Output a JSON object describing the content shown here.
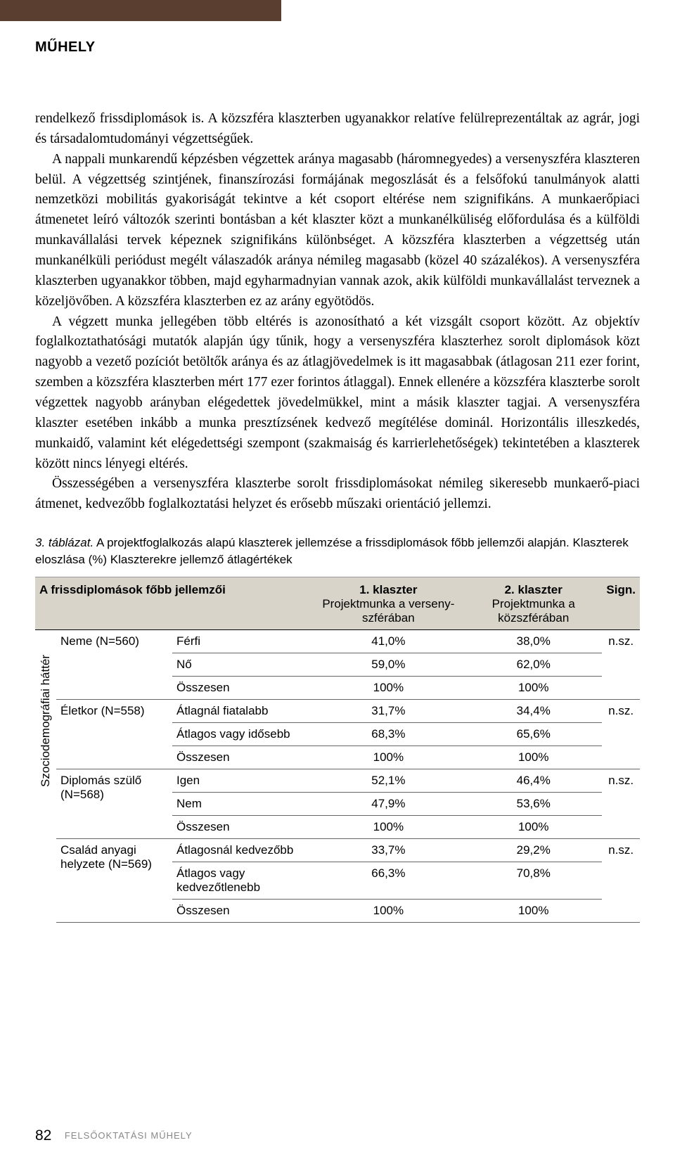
{
  "header": {
    "title": "MŰHELY"
  },
  "paragraphs": {
    "p1": "rendelkező frissdiplomások is. A közszféra klaszterben ugyanakkor relatíve felülreprezentáltak az agrár, jogi és társadalomtudományi végzettségűek.",
    "p2": "A nappali munkarendű képzésben végzettek aránya magasabb (háromnegyedes) a versenyszféra klaszteren belül. A végzettség szintjének, finanszírozási formájának megoszlását és a felsőfokú tanulmányok alatti nemzetközi mobilitás gyakoriságát tekintve a két csoport eltérése nem szignifikáns. A munkaerőpiaci átmenetet leíró változók szerinti bontásban a két klaszter közt a munkanélküliség előfordulása és a külföldi munkavállalási tervek képeznek szignifikáns különbséget. A közszféra klaszterben a végzettség után munkanélküli periódust megélt válaszadók aránya némileg magasabb (közel 40 százalékos). A versenyszféra klaszterben ugyanakkor többen, majd egyharmadnyian vannak azok, akik külföldi munkavállalást terveznek a közeljövőben. A közszféra klaszterben ez az arány egyötödös.",
    "p3": "A végzett munka jellegében több eltérés is azonosítható a két vizsgált csoport között. Az objektív foglalkoztathatósági mutatók alapján úgy tűnik, hogy a versenyszféra klaszterhez sorolt diplomások közt nagyobb a vezető pozíciót betöltők aránya és az átlagjövedelmek is itt magasabbak (átlagosan 211 ezer forint, szemben a közszféra klaszterben mért 177 ezer forintos átlaggal). Ennek ellenére a közszféra klaszterbe sorolt végzettek nagyobb arányban elégedettek jövedelmükkel, mint a másik klaszter tagjai. A versenyszféra klaszter esetében inkább a munka presztízsének kedvező megítélése dominál. Horizontális illeszkedés, munkaidő, valamint két elégedettségi szempont (szakmaiság és karrierlehetőségek) tekintetében a klaszterek között nincs lényegi eltérés.",
    "p4": "Összességében a versenyszféra klaszterbe sorolt frissdiplomásokat némileg sikeresebb munkaerő-piaci átmenet, kedvezőbb foglalkoztatási helyzet és erősebb műszaki orientáció jellemzi."
  },
  "tableCaption": {
    "lead": "3. táblázat.",
    "rest": " A projektfoglalkozás alapú klaszterek jellemzése a frissdiplomások főbb jellemzői alapján. Klaszterek eloszlása (%) Klaszterekre jellemző átlagértékek"
  },
  "table": {
    "header": {
      "c1": "A frissdiplomások főbb jellemzői",
      "c2a": "1. klaszter",
      "c2b": "Projektmunka a verseny­szférában",
      "c3a": "2. klaszter",
      "c3b": "Projektmunka a közszférában",
      "c4": "Sign."
    },
    "sideLabel": "Szociodemográfiai háttér",
    "g1": {
      "label": "Neme (N=560)",
      "r1": {
        "lbl": "Férfi",
        "v1": "41,0%",
        "v2": "38,0%",
        "sig": "n.sz."
      },
      "r2": {
        "lbl": "Nő",
        "v1": "59,0%",
        "v2": "62,0%"
      },
      "r3": {
        "lbl": "Összesen",
        "v1": "100%",
        "v2": "100%"
      }
    },
    "g2": {
      "label": "Életkor (N=558)",
      "r1": {
        "lbl": "Átlagnál fiatalabb",
        "v1": "31,7%",
        "v2": "34,4%",
        "sig": "n.sz."
      },
      "r2": {
        "lbl": "Átlagos vagy idősebb",
        "v1": "68,3%",
        "v2": "65,6%"
      },
      "r3": {
        "lbl": "Összesen",
        "v1": "100%",
        "v2": "100%"
      }
    },
    "g3": {
      "label": "Diplomás szülő (N=568)",
      "r1": {
        "lbl": "Igen",
        "v1": "52,1%",
        "v2": "46,4%",
        "sig": "n.sz."
      },
      "r2": {
        "lbl": "Nem",
        "v1": "47,9%",
        "v2": "53,6%"
      },
      "r3": {
        "lbl": "Összesen",
        "v1": "100%",
        "v2": "100%"
      }
    },
    "g4": {
      "label": "Család anyagi helyzete (N=569)",
      "r1": {
        "lbl": "Átlagosnál kedvezőbb",
        "v1": "33,7%",
        "v2": "29,2%",
        "sig": "n.sz."
      },
      "r2": {
        "lbl": "Átlagos vagy kedvezőtlenebb",
        "v1": "66,3%",
        "v2": "70,8%"
      },
      "r3": {
        "lbl": "Összesen",
        "v1": "100%",
        "v2": "100%"
      }
    }
  },
  "footer": {
    "page": "82",
    "label": "FELSŐOKTATÁSI MŰHELY"
  }
}
